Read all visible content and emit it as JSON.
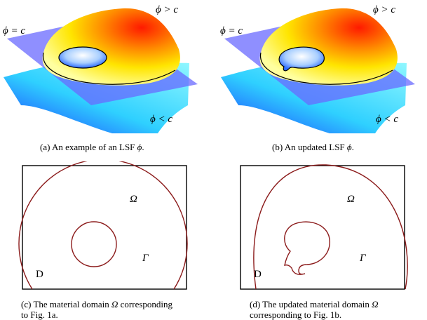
{
  "panels": {
    "a": {
      "phi_eq_c": "ϕ = c",
      "phi_gt_c": "ϕ > c",
      "phi_lt_c": "ϕ < c",
      "caption_tag": "(a)",
      "caption_text": "An example of an LSF",
      "caption_symbol": "ϕ",
      "caption_end": "."
    },
    "b": {
      "phi_eq_c": "ϕ = c",
      "phi_gt_c": "ϕ > c",
      "phi_lt_c": "ϕ < c",
      "caption_tag": "(b)",
      "caption_text": "An updated LSF",
      "caption_symbol": "ϕ",
      "caption_end": "."
    },
    "c": {
      "omega": "Ω",
      "gamma": "Γ",
      "domain": "D",
      "caption_line1_a": "(c) The material domain",
      "caption_symbol": "Ω",
      "caption_line1_b": "corresponding",
      "caption_line2": "to Fig. 1a."
    },
    "d": {
      "omega": "Ω",
      "gamma": "Γ",
      "domain": "D",
      "caption_line1_a": "(d) The updated material domain",
      "caption_symbol": "Ω",
      "caption_line2": "corresponding to Fig. 1b."
    }
  },
  "colors": {
    "boundary": "#8b1a1a",
    "plane": "#6a6aff",
    "surface_low": "#2fd0ff",
    "surface_high": "#ff2a00"
  }
}
